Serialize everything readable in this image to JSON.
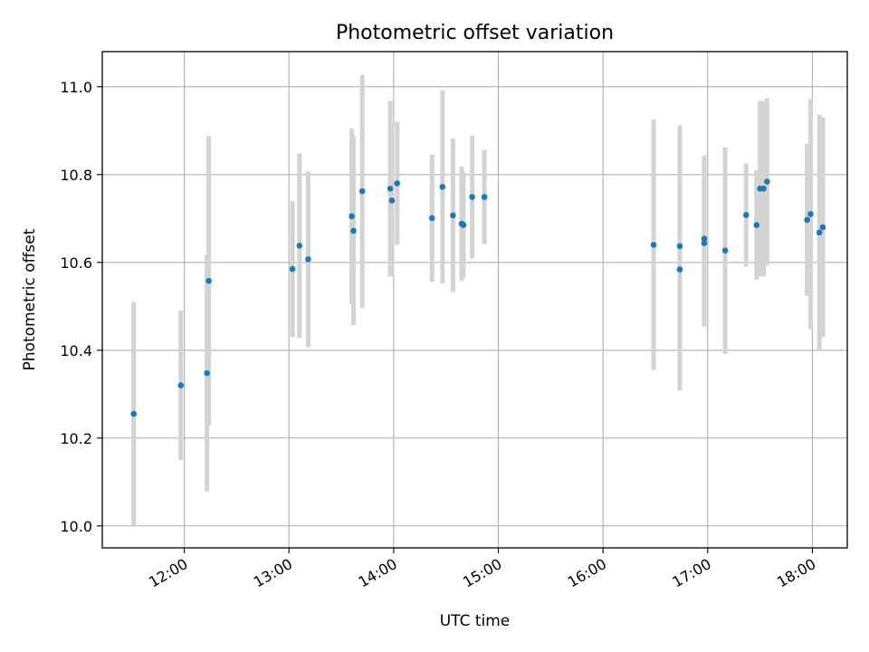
{
  "chart_data": {
    "type": "scatter",
    "title": "Photometric offset variation",
    "xlabel": "UTC time",
    "ylabel": "Photometric offset",
    "grid": true,
    "xlim": [
      "11:13",
      "18:20"
    ],
    "ylim": [
      9.95,
      11.08
    ],
    "x_ticks": [
      "12:00",
      "13:00",
      "14:00",
      "15:00",
      "16:00",
      "17:00",
      "18:00"
    ],
    "y_ticks": [
      "10.0",
      "10.2",
      "10.4",
      "10.6",
      "10.8",
      "11.0"
    ],
    "colors": {
      "marker": "#1f77b4",
      "errorbar": "#d3d3d3",
      "grid": "#b0b0b0"
    },
    "series": [
      {
        "x": [
          "11:31",
          "11:58",
          "12:13",
          "12:14",
          "13:02",
          "13:06",
          "13:11",
          "13:36",
          "13:37",
          "13:42",
          "13:58",
          "13:59",
          "14:02",
          "14:22",
          "14:28",
          "14:34",
          "14:39",
          "14:40",
          "14:45",
          "14:52",
          "16:29",
          "16:44",
          "16:44",
          "16:58",
          "16:58",
          "17:10",
          "17:22",
          "17:28",
          "17:30",
          "17:32",
          "17:34",
          "17:57",
          "17:59",
          "18:04",
          "18:06"
        ],
        "y": [
          10.255,
          10.32,
          10.348,
          10.558,
          10.585,
          10.638,
          10.607,
          10.705,
          10.672,
          10.762,
          10.768,
          10.741,
          10.78,
          10.701,
          10.772,
          10.707,
          10.688,
          10.685,
          10.749,
          10.749,
          10.64,
          10.584,
          10.637,
          10.654,
          10.644,
          10.627,
          10.708,
          10.685,
          10.768,
          10.768,
          10.784,
          10.697,
          10.71,
          10.668,
          10.68
        ],
        "yerr": [
          0.255,
          0.17,
          0.27,
          0.33,
          0.155,
          0.21,
          0.2,
          0.2,
          0.215,
          0.265,
          0.2,
          0.17,
          0.14,
          0.145,
          0.22,
          0.175,
          0.13,
          0.12,
          0.14,
          0.107,
          0.285,
          0.276,
          0.275,
          0.19,
          0.19,
          0.235,
          0.117,
          0.125,
          0.2,
          0.2,
          0.19,
          0.173,
          0.262,
          0.268,
          0.25
        ]
      }
    ]
  }
}
